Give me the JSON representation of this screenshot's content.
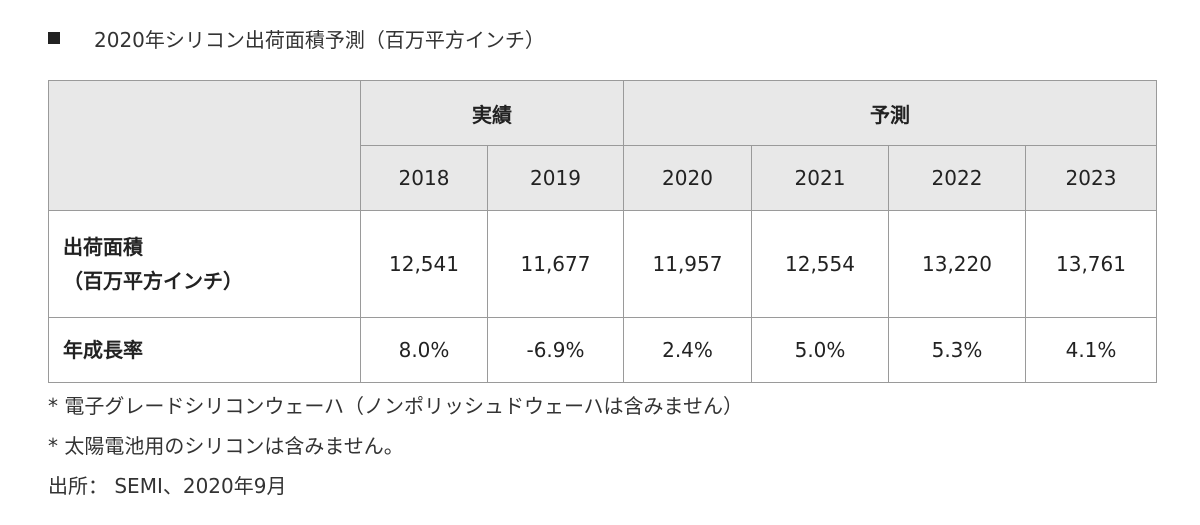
{
  "heading": {
    "title": "2020年シリコン出荷面積予測（百万平方インチ）"
  },
  "table": {
    "group_headers": [
      "実績",
      "予測"
    ],
    "years": [
      "2018",
      "2019",
      "2020",
      "2021",
      "2022",
      "2023"
    ],
    "rows": [
      {
        "label_line1": "出荷面積",
        "label_line2": "（百万平方インチ）",
        "values": [
          "12,541",
          "11,677",
          "11,957",
          "12,554",
          "13,220",
          "13,761"
        ]
      },
      {
        "label_line1": "年成長率",
        "values": [
          "8.0%",
          "-6.9%",
          "2.4%",
          "5.0%",
          "5.3%",
          "4.1%"
        ]
      }
    ]
  },
  "notes": {
    "note1": "* 電子グレードシリコンウェーハ（ノンポリッシュドウェーハは含みません）",
    "note2": "* 太陽電池用のシリコンは含みません。",
    "source": "出所： SEMI、2020年9月"
  }
}
